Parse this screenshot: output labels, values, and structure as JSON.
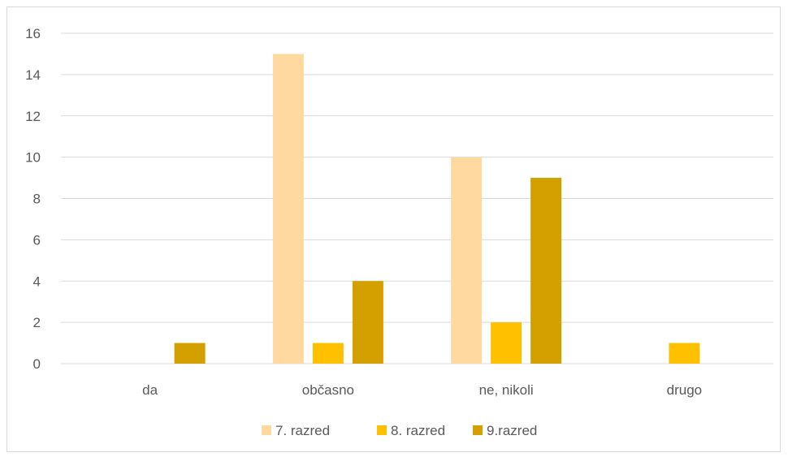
{
  "chart_data": {
    "type": "bar",
    "categories": [
      "da",
      "občasno",
      "ne, nikoli",
      "drugo"
    ],
    "series": [
      {
        "name": "7. razred",
        "color": "#FFD9A0",
        "values": [
          0,
          15,
          10,
          0
        ]
      },
      {
        "name": "8. razred",
        "color": "#FFC000",
        "values": [
          0,
          1,
          2,
          1
        ]
      },
      {
        "name": "9.razred",
        "color": "#D4A000",
        "values": [
          1,
          4,
          9,
          0
        ]
      }
    ],
    "ylim": [
      0,
      16
    ],
    "yticks": [
      0,
      2,
      4,
      6,
      8,
      10,
      12,
      14,
      16
    ],
    "grid": true,
    "legend_position": "bottom"
  }
}
